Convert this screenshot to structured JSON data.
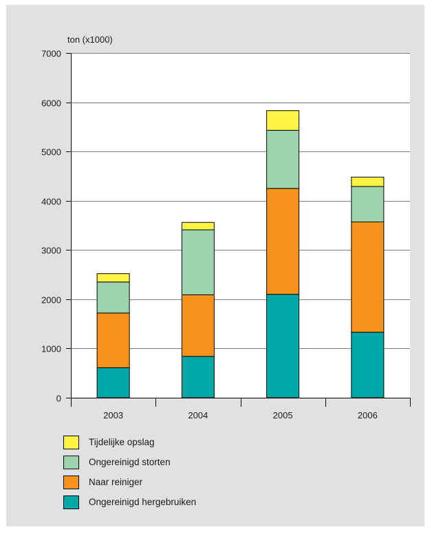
{
  "chart_data": {
    "type": "bar",
    "stacked": true,
    "ylabel": "ton (x1000)",
    "categories": [
      "2003",
      "2004",
      "2005",
      "2006"
    ],
    "ylim": [
      0,
      7000
    ],
    "yticks": [
      "0",
      "1000",
      "2000",
      "3000",
      "4000",
      "5000",
      "6000",
      "7000"
    ],
    "grid": true,
    "series": [
      {
        "name": "Ongereinigd hergebruiken",
        "color": "#00a9a7",
        "values": [
          610,
          840,
          2100,
          1330
        ]
      },
      {
        "name": "Naar reiniger",
        "color": "#f7931d",
        "values": [
          1110,
          1250,
          2150,
          2240
        ]
      },
      {
        "name": "Ongereinigd storten",
        "color": "#9dd4ae",
        "values": [
          630,
          1320,
          1180,
          720
        ]
      },
      {
        "name": "Tijdelijke opslag",
        "color": "#fff345",
        "values": [
          170,
          150,
          400,
          190
        ]
      }
    ],
    "legend_order": [
      "Tijdelijke opslag",
      "Ongereinigd storten",
      "Naar reiniger",
      "Ongereinigd hergebruiken"
    ],
    "legend_position": "bottom-left"
  }
}
